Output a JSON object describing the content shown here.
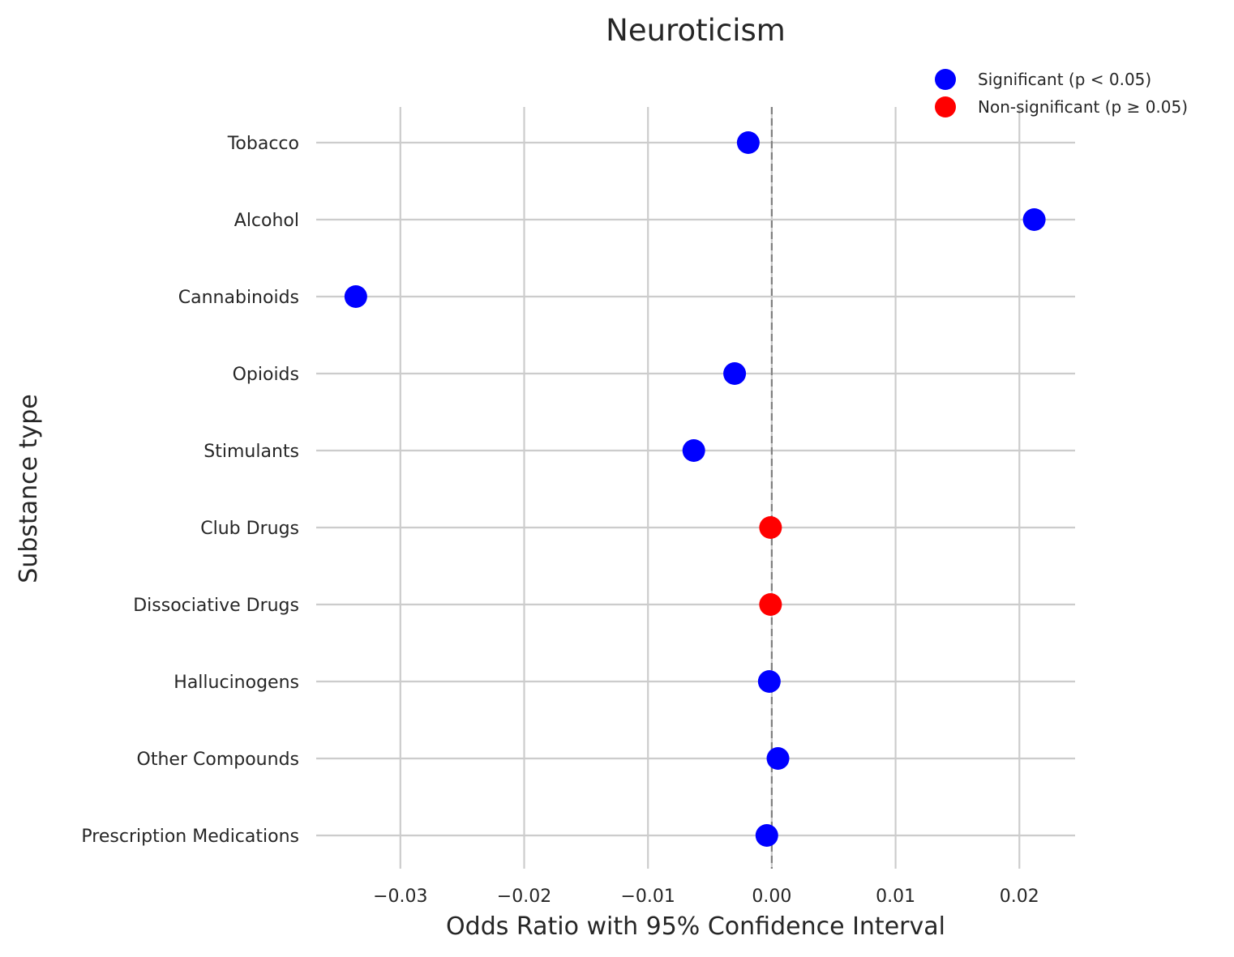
{
  "chart_data": {
    "type": "scatter",
    "title": "Neuroticism",
    "xlabel": "Odds Ratio with 95% Confidence Interval",
    "ylabel": "Substance type",
    "xlim": [
      -0.0368,
      0.0245
    ],
    "x_ticks": [
      -0.03,
      -0.02,
      -0.01,
      0.0,
      0.01,
      0.02
    ],
    "x_tick_labels": [
      "−0.03",
      "−0.02",
      "−0.01",
      "0.00",
      "0.01",
      "0.02"
    ],
    "grid": true,
    "reference_line": 0.0,
    "categories": [
      "Tobacco",
      "Alcohol",
      "Cannabinoids",
      "Opioids",
      "Stimulants",
      "Club Drugs",
      "Dissociative Drugs",
      "Hallucinogens",
      "Other Compounds",
      "Prescription Medications"
    ],
    "values": [
      -0.0019,
      0.0212,
      -0.0336,
      -0.003,
      -0.0063,
      -0.0001,
      -0.0001,
      -0.0002,
      0.0005,
      -0.0004
    ],
    "significant": [
      true,
      true,
      true,
      true,
      true,
      false,
      false,
      true,
      true,
      true
    ],
    "legend": {
      "placement": "top-right",
      "entries": [
        {
          "label": "Significant (p < 0.05)",
          "color": "#0000ff"
        },
        {
          "label": "Non-significant (p ≥ 0.05)",
          "color": "#ff0000"
        }
      ]
    },
    "colors": {
      "significant": "#0000ff",
      "non_significant": "#ff0000"
    }
  }
}
